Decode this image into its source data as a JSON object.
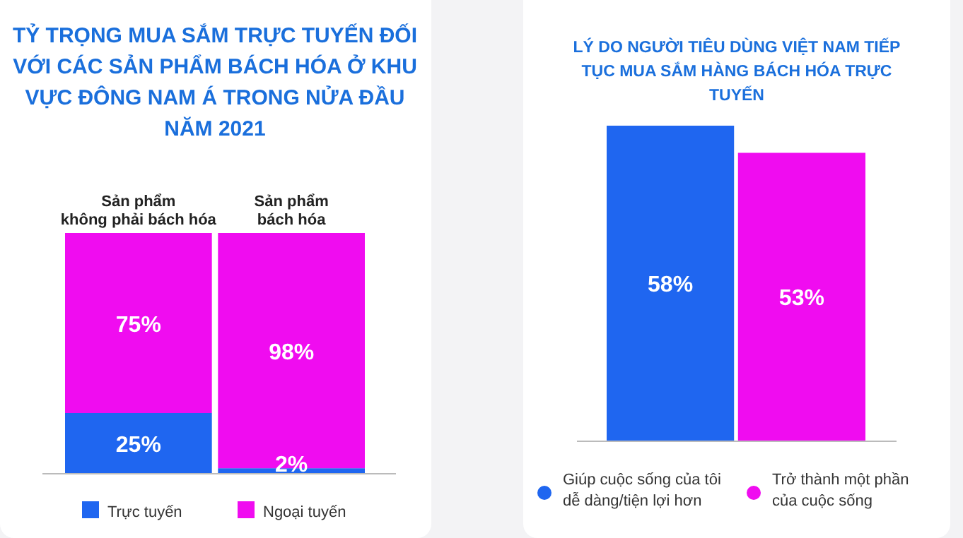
{
  "chart_data": [
    {
      "type": "bar",
      "title": "TỶ TRỌNG MUA SẮM TRỰC TUYẾN ĐỐI VỚI CÁC SẢN PHẨM BÁCH HÓA Ở KHU VỰC ĐÔNG NAM Á TRONG NỬA ĐẦU NĂM 2021",
      "categories": [
        "Sản phẩm\nkhông phải bách hóa",
        "Sản phẩm\nbách hóa"
      ],
      "stacked": true,
      "legend": "bottom",
      "series": [
        {
          "name": "Trực tuyến",
          "color": "#1f66f0",
          "values": [
            25,
            2
          ],
          "value_labels": [
            "25%",
            "2%"
          ]
        },
        {
          "name": "Ngoại tuyến",
          "color": "#f00cf0",
          "values": [
            75,
            98
          ],
          "value_labels": [
            "75%",
            "98%"
          ]
        }
      ]
    },
    {
      "type": "bar",
      "title": "LÝ DO NGƯỜI TIÊU DÙNG VIỆT NAM TIẾP TỤC MUA SẮM HÀNG BÁCH HÓA TRỰC TUYẾN",
      "categories": [
        null
      ],
      "legend": "bottom",
      "series": [
        {
          "name": "Giúp cuộc sống của tôi\ndễ dàng/tiện lợi hơn",
          "color": "#1f66f0",
          "values": [
            58
          ],
          "value_labels": [
            "58%"
          ]
        },
        {
          "name": "Trở thành một phần\ncủa cuộc sống",
          "color": "#f00cf0",
          "values": [
            53
          ],
          "value_labels": [
            "53%"
          ]
        }
      ]
    }
  ]
}
